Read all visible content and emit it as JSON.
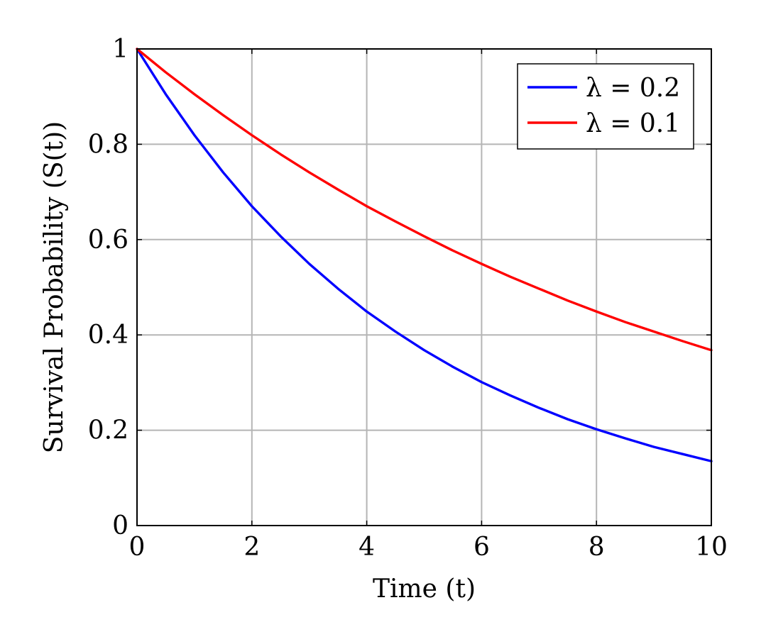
{
  "chart_data": {
    "type": "line",
    "title": "",
    "xlabel": "Time (t)",
    "ylabel": "Survival Probability (S(t))",
    "xlim": [
      0,
      10
    ],
    "ylim": [
      0,
      1
    ],
    "x_ticks": [
      0,
      2,
      4,
      6,
      8,
      10
    ],
    "y_ticks": [
      0,
      0.2,
      0.4,
      0.6,
      0.8,
      1
    ],
    "x_tick_labels": [
      "0",
      "2",
      "4",
      "6",
      "8",
      "10"
    ],
    "y_tick_labels": [
      "0",
      "0.2",
      "0.4",
      "0.6",
      "0.8",
      "1"
    ],
    "grid": true,
    "legend_position": "top-right",
    "x": [
      0,
      0.5,
      1,
      1.5,
      2,
      2.5,
      3,
      3.5,
      4,
      4.5,
      5,
      5.5,
      6,
      6.5,
      7,
      7.5,
      8,
      8.5,
      9,
      9.5,
      10
    ],
    "series": [
      {
        "name": "λ = 0.2",
        "color": "#0000ff",
        "values": [
          1.0,
          0.905,
          0.819,
          0.741,
          0.67,
          0.607,
          0.549,
          0.497,
          0.449,
          0.407,
          0.368,
          0.333,
          0.301,
          0.273,
          0.247,
          0.223,
          0.202,
          0.183,
          0.165,
          0.15,
          0.135
        ]
      },
      {
        "name": "λ = 0.1",
        "color": "#ff0000",
        "values": [
          1.0,
          0.951,
          0.905,
          0.861,
          0.819,
          0.779,
          0.741,
          0.705,
          0.67,
          0.638,
          0.607,
          0.577,
          0.549,
          0.522,
          0.497,
          0.472,
          0.449,
          0.427,
          0.407,
          0.387,
          0.368
        ]
      }
    ]
  }
}
